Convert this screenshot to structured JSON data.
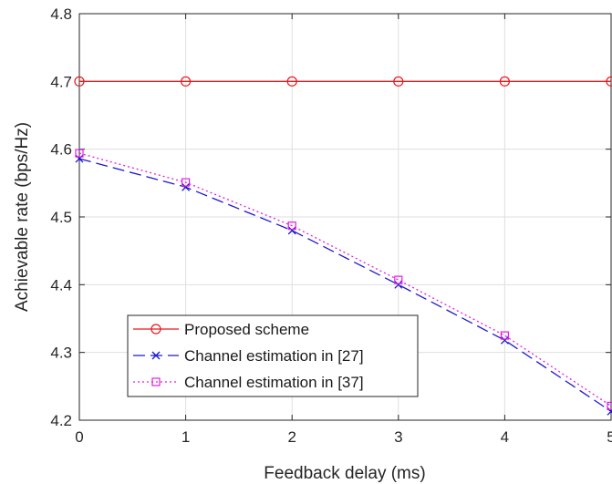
{
  "chart_data": {
    "type": "line",
    "title": "",
    "xlabel": "Feedback delay (ms)",
    "ylabel": "Achievable rate (bps/Hz)",
    "xlim": [
      0,
      5
    ],
    "ylim": [
      4.2,
      4.8
    ],
    "xticks": [
      0,
      1,
      2,
      3,
      4,
      5
    ],
    "yticks": [
      4.2,
      4.3,
      4.4,
      4.5,
      4.6,
      4.7,
      4.8
    ],
    "xtick_labels": [
      "0",
      "1",
      "2",
      "3",
      "4",
      "5"
    ],
    "ytick_labels": [
      "4.2",
      "4.3",
      "4.4",
      "4.5",
      "4.6",
      "4.7",
      "4.8"
    ],
    "grid": true,
    "legend_position": "bottom-left",
    "x": [
      0,
      1,
      2,
      3,
      4,
      5
    ],
    "series": [
      {
        "name": "Proposed scheme",
        "values": [
          4.7,
          4.7,
          4.7,
          4.7,
          4.7,
          4.7
        ],
        "color": "#e8161b",
        "line_style": "solid",
        "marker": "circle"
      },
      {
        "name": "Channel estimation in [27]",
        "values": [
          4.586,
          4.544,
          4.48,
          4.4,
          4.318,
          4.213
        ],
        "color": "#1a1acc",
        "line_style": "dashed",
        "marker": "x"
      },
      {
        "name": "Channel estimation in [37]",
        "values": [
          4.594,
          4.551,
          4.487,
          4.407,
          4.325,
          4.221
        ],
        "color": "#e21ee2",
        "line_style": "dotted",
        "marker": "square"
      }
    ]
  }
}
